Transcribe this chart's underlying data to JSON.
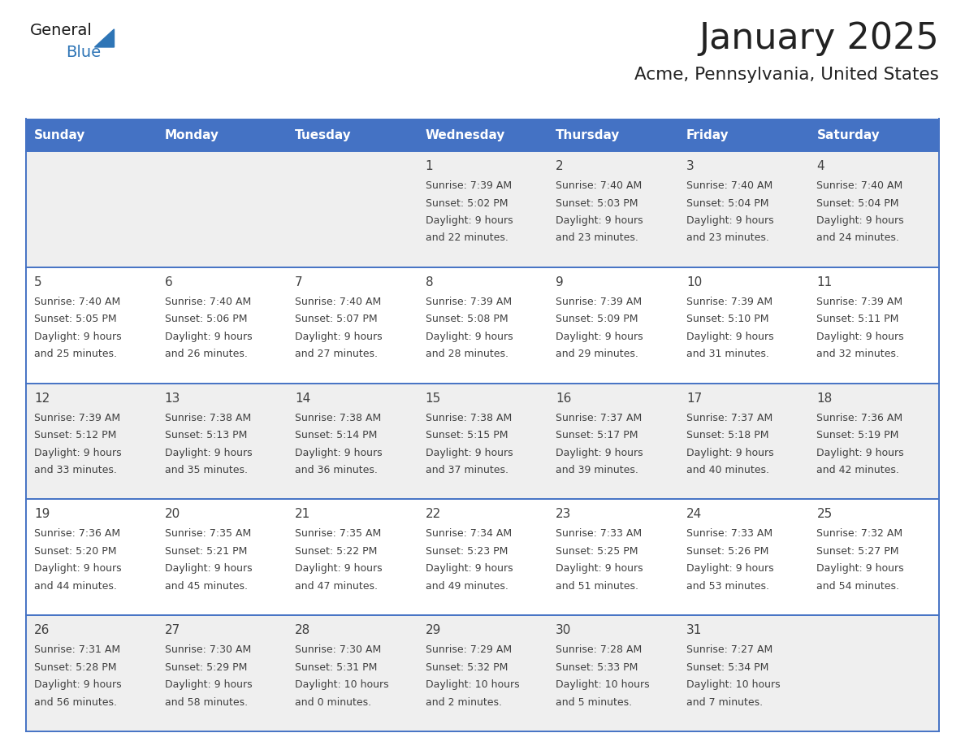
{
  "title": "January 2025",
  "subtitle": "Acme, Pennsylvania, United States",
  "header_bg_color": "#4472C4",
  "header_text_color": "#FFFFFF",
  "header_days": [
    "Sunday",
    "Monday",
    "Tuesday",
    "Wednesday",
    "Thursday",
    "Friday",
    "Saturday"
  ],
  "cell_bg_odd": "#EFEFEF",
  "cell_bg_even": "#FFFFFF",
  "divider_color": "#4472C4",
  "text_color": "#404040",
  "title_color": "#222222",
  "logo_general_color": "#1a1a1a",
  "logo_blue_color": "#2E75B6",
  "weeks": [
    {
      "days": [
        {
          "date": "",
          "sunrise": "",
          "sunset": "",
          "daylight_h": "",
          "daylight_m": ""
        },
        {
          "date": "",
          "sunrise": "",
          "sunset": "",
          "daylight_h": "",
          "daylight_m": ""
        },
        {
          "date": "",
          "sunrise": "",
          "sunset": "",
          "daylight_h": "",
          "daylight_m": ""
        },
        {
          "date": "1",
          "sunrise": "7:39 AM",
          "sunset": "5:02 PM",
          "daylight_h": "9 hours",
          "daylight_m": "and 22 minutes."
        },
        {
          "date": "2",
          "sunrise": "7:40 AM",
          "sunset": "5:03 PM",
          "daylight_h": "9 hours",
          "daylight_m": "and 23 minutes."
        },
        {
          "date": "3",
          "sunrise": "7:40 AM",
          "sunset": "5:04 PM",
          "daylight_h": "9 hours",
          "daylight_m": "and 23 minutes."
        },
        {
          "date": "4",
          "sunrise": "7:40 AM",
          "sunset": "5:04 PM",
          "daylight_h": "9 hours",
          "daylight_m": "and 24 minutes."
        }
      ]
    },
    {
      "days": [
        {
          "date": "5",
          "sunrise": "7:40 AM",
          "sunset": "5:05 PM",
          "daylight_h": "9 hours",
          "daylight_m": "and 25 minutes."
        },
        {
          "date": "6",
          "sunrise": "7:40 AM",
          "sunset": "5:06 PM",
          "daylight_h": "9 hours",
          "daylight_m": "and 26 minutes."
        },
        {
          "date": "7",
          "sunrise": "7:40 AM",
          "sunset": "5:07 PM",
          "daylight_h": "9 hours",
          "daylight_m": "and 27 minutes."
        },
        {
          "date": "8",
          "sunrise": "7:39 AM",
          "sunset": "5:08 PM",
          "daylight_h": "9 hours",
          "daylight_m": "and 28 minutes."
        },
        {
          "date": "9",
          "sunrise": "7:39 AM",
          "sunset": "5:09 PM",
          "daylight_h": "9 hours",
          "daylight_m": "and 29 minutes."
        },
        {
          "date": "10",
          "sunrise": "7:39 AM",
          "sunset": "5:10 PM",
          "daylight_h": "9 hours",
          "daylight_m": "and 31 minutes."
        },
        {
          "date": "11",
          "sunrise": "7:39 AM",
          "sunset": "5:11 PM",
          "daylight_h": "9 hours",
          "daylight_m": "and 32 minutes."
        }
      ]
    },
    {
      "days": [
        {
          "date": "12",
          "sunrise": "7:39 AM",
          "sunset": "5:12 PM",
          "daylight_h": "9 hours",
          "daylight_m": "and 33 minutes."
        },
        {
          "date": "13",
          "sunrise": "7:38 AM",
          "sunset": "5:13 PM",
          "daylight_h": "9 hours",
          "daylight_m": "and 35 minutes."
        },
        {
          "date": "14",
          "sunrise": "7:38 AM",
          "sunset": "5:14 PM",
          "daylight_h": "9 hours",
          "daylight_m": "and 36 minutes."
        },
        {
          "date": "15",
          "sunrise": "7:38 AM",
          "sunset": "5:15 PM",
          "daylight_h": "9 hours",
          "daylight_m": "and 37 minutes."
        },
        {
          "date": "16",
          "sunrise": "7:37 AM",
          "sunset": "5:17 PM",
          "daylight_h": "9 hours",
          "daylight_m": "and 39 minutes."
        },
        {
          "date": "17",
          "sunrise": "7:37 AM",
          "sunset": "5:18 PM",
          "daylight_h": "9 hours",
          "daylight_m": "and 40 minutes."
        },
        {
          "date": "18",
          "sunrise": "7:36 AM",
          "sunset": "5:19 PM",
          "daylight_h": "9 hours",
          "daylight_m": "and 42 minutes."
        }
      ]
    },
    {
      "days": [
        {
          "date": "19",
          "sunrise": "7:36 AM",
          "sunset": "5:20 PM",
          "daylight_h": "9 hours",
          "daylight_m": "and 44 minutes."
        },
        {
          "date": "20",
          "sunrise": "7:35 AM",
          "sunset": "5:21 PM",
          "daylight_h": "9 hours",
          "daylight_m": "and 45 minutes."
        },
        {
          "date": "21",
          "sunrise": "7:35 AM",
          "sunset": "5:22 PM",
          "daylight_h": "9 hours",
          "daylight_m": "and 47 minutes."
        },
        {
          "date": "22",
          "sunrise": "7:34 AM",
          "sunset": "5:23 PM",
          "daylight_h": "9 hours",
          "daylight_m": "and 49 minutes."
        },
        {
          "date": "23",
          "sunrise": "7:33 AM",
          "sunset": "5:25 PM",
          "daylight_h": "9 hours",
          "daylight_m": "and 51 minutes."
        },
        {
          "date": "24",
          "sunrise": "7:33 AM",
          "sunset": "5:26 PM",
          "daylight_h": "9 hours",
          "daylight_m": "and 53 minutes."
        },
        {
          "date": "25",
          "sunrise": "7:32 AM",
          "sunset": "5:27 PM",
          "daylight_h": "9 hours",
          "daylight_m": "and 54 minutes."
        }
      ]
    },
    {
      "days": [
        {
          "date": "26",
          "sunrise": "7:31 AM",
          "sunset": "5:28 PM",
          "daylight_h": "9 hours",
          "daylight_m": "and 56 minutes."
        },
        {
          "date": "27",
          "sunrise": "7:30 AM",
          "sunset": "5:29 PM",
          "daylight_h": "9 hours",
          "daylight_m": "and 58 minutes."
        },
        {
          "date": "28",
          "sunrise": "7:30 AM",
          "sunset": "5:31 PM",
          "daylight_h": "10 hours",
          "daylight_m": "and 0 minutes."
        },
        {
          "date": "29",
          "sunrise": "7:29 AM",
          "sunset": "5:32 PM",
          "daylight_h": "10 hours",
          "daylight_m": "and 2 minutes."
        },
        {
          "date": "30",
          "sunrise": "7:28 AM",
          "sunset": "5:33 PM",
          "daylight_h": "10 hours",
          "daylight_m": "and 5 minutes."
        },
        {
          "date": "31",
          "sunrise": "7:27 AM",
          "sunset": "5:34 PM",
          "daylight_h": "10 hours",
          "daylight_m": "and 7 minutes."
        },
        {
          "date": "",
          "sunrise": "",
          "sunset": "",
          "daylight_h": "",
          "daylight_m": ""
        }
      ]
    }
  ]
}
